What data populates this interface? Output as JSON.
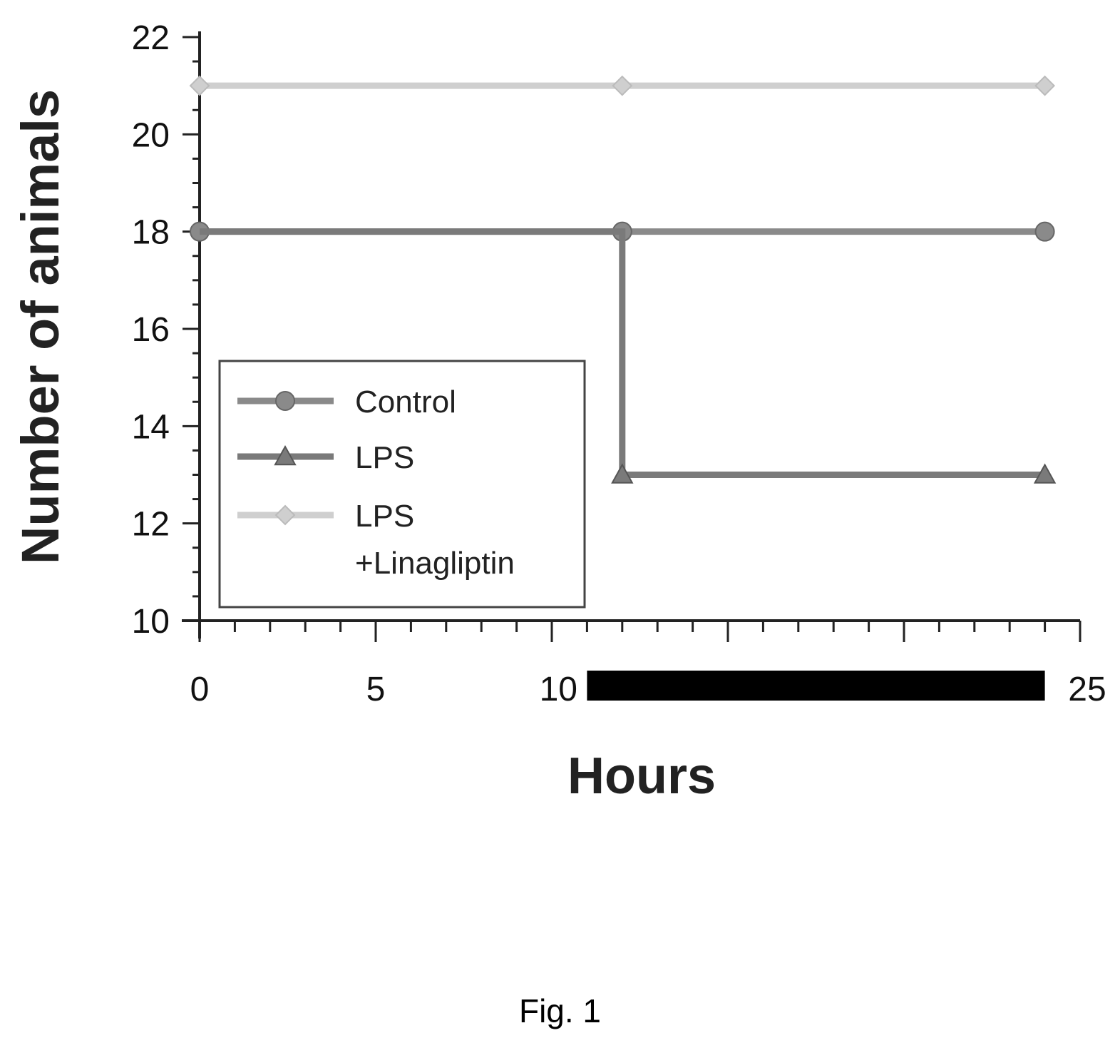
{
  "chart_data": {
    "type": "line",
    "xlabel": "Hours",
    "ylabel": "Number of animals",
    "xlim": [
      0,
      25
    ],
    "ylim": [
      10,
      22
    ],
    "x_ticks": [
      "0",
      "5",
      "10",
      "25"
    ],
    "y_ticks": [
      "10",
      "12",
      "14",
      "16",
      "18",
      "20",
      "22"
    ],
    "grid": false,
    "legend_position": "bottom-left",
    "series": [
      {
        "name": "Control",
        "marker": "circle",
        "color": "#8a8a8a",
        "step": false,
        "x": [
          0,
          12,
          24
        ],
        "y": [
          18,
          18,
          18
        ]
      },
      {
        "name": "LPS",
        "marker": "triangle",
        "color": "#7a7a7a",
        "step": true,
        "x": [
          0,
          12,
          12,
          24
        ],
        "y": [
          18,
          18,
          13,
          13
        ]
      },
      {
        "name": "LPS +Linagliptin",
        "legend_lines": [
          "LPS",
          "+Linagliptin"
        ],
        "marker": "diamond",
        "color": "#cfcfcf",
        "step": false,
        "x": [
          0,
          12,
          24
        ],
        "y": [
          21,
          21,
          21
        ]
      }
    ],
    "annotation": {
      "type": "dark-bar",
      "x_range": [
        11,
        24
      ],
      "color": "#000000"
    }
  },
  "caption": "Fig. 1"
}
